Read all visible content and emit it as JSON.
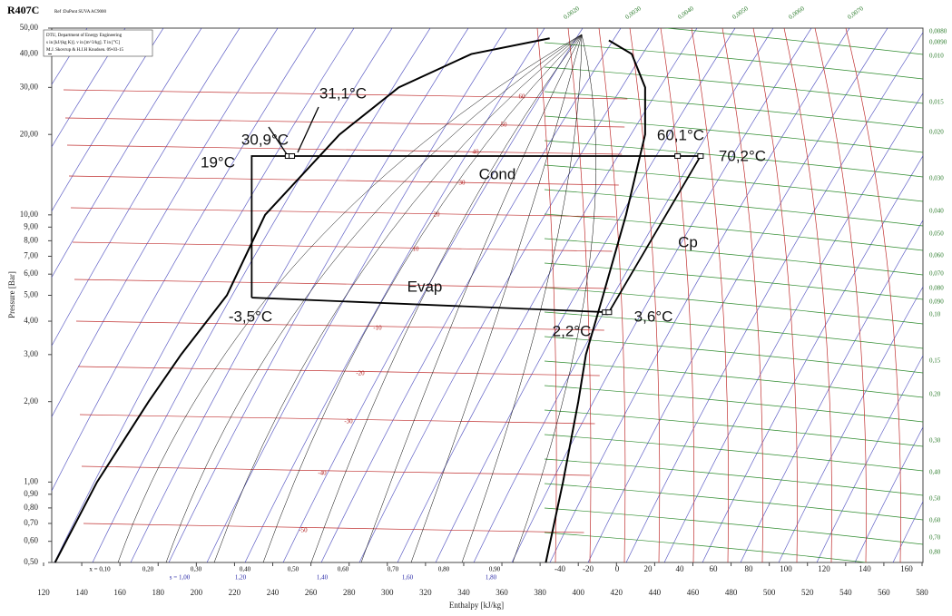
{
  "chart_data": {
    "type": "line",
    "title": "R407C",
    "subtitle": "Ref :DuPont SUVA AC9000",
    "notes": [
      "DTU, Department of Energy Engineering",
      "s in [kJ/(kg K)]. v in [m^3/kg]. T in [°C]",
      "M.J. Skovrup & H.J.H Knudsen. 09-03-15"
    ],
    "xlabel": "Enthalpy [kJ/kg]",
    "ylabel": "Pressure [Bar]",
    "log_y": true,
    "xlim": [
      120,
      580
    ],
    "xticks": [
      120,
      140,
      160,
      180,
      200,
      220,
      240,
      260,
      280,
      300,
      320,
      340,
      360,
      380,
      400,
      420,
      440,
      460,
      480,
      500,
      520,
      540,
      560,
      580
    ],
    "ylim": [
      0.5,
      50
    ],
    "yticks": [
      {
        "value": 0.5,
        "label": "0,50"
      },
      {
        "value": 0.6,
        "label": "0,60"
      },
      {
        "value": 0.7,
        "label": "0,70"
      },
      {
        "value": 0.8,
        "label": "0,80"
      },
      {
        "value": 0.9,
        "label": "0,90"
      },
      {
        "value": 1,
        "label": "1,00"
      },
      {
        "value": 2,
        "label": "2,00"
      },
      {
        "value": 3,
        "label": "3,00"
      },
      {
        "value": 4,
        "label": "4,00"
      },
      {
        "value": 5,
        "label": "5,00"
      },
      {
        "value": 6,
        "label": "6,00"
      },
      {
        "value": 7,
        "label": "7,00"
      },
      {
        "value": 8,
        "label": "8,00"
      },
      {
        "value": 9,
        "label": "9,00"
      },
      {
        "value": 10,
        "label": "10,00"
      },
      {
        "value": 20,
        "label": "20,00"
      },
      {
        "value": 30,
        "label": "30,00"
      },
      {
        "value": 40,
        "label": "40,00"
      },
      {
        "value": 50,
        "label": "50,00"
      }
    ],
    "series": [
      {
        "color": "#000000",
        "x": [
          126,
          148,
          175,
          192,
          216,
          236,
          275,
          306,
          344,
          385
        ],
        "values": [
          0.5,
          1,
          2,
          3,
          5,
          10,
          20,
          30,
          40,
          45.8
        ]
      },
      {
        "color": "#000000",
        "x": [
          383,
          392,
          400,
          404,
          413,
          425,
          435,
          435,
          428,
          416
        ],
        "values": [
          0.5,
          1,
          2,
          3,
          5,
          10,
          20,
          30,
          40,
          45
        ]
      },
      {
        "color": "#000000",
        "x": [
          229,
          416,
          464,
          229,
          229
        ],
        "values": [
          4.9,
          4.32,
          16.6,
          16.6,
          4.9
        ]
      }
    ],
    "markers": {
      "color": "#000000",
      "x": [
        248,
        250,
        452,
        464,
        414,
        416
      ],
      "values": [
        16.6,
        16.6,
        16.6,
        16.6,
        4.32,
        4.32
      ]
    },
    "annotations": [
      "30,9°C",
      "31,1°C",
      "19°C",
      "60,1°C",
      "70,2°C",
      "Cond",
      "Cp",
      "Evap",
      "-3,5°C",
      "2,2°C",
      "3,6°C"
    ],
    "quality_labels": [
      "x = 0,10",
      "0,20",
      "0,30",
      "0,40",
      "0,50",
      "0,60",
      "0,70",
      "0,80",
      "0,90"
    ],
    "entropy_labels": [
      "s = 1,00",
      "1,20",
      "1,40",
      "1,60",
      "1,80"
    ],
    "temperature_labels": [
      "-40",
      "-20",
      "0",
      "20",
      "40",
      "60",
      "80",
      "100",
      "120",
      "140",
      "160"
    ],
    "isotherm_labels": [
      "60",
      "50",
      "40",
      "30",
      "20",
      "10",
      "-10",
      "-20",
      "-30",
      "-40",
      "-50"
    ],
    "volume_labels": [
      "0,0080",
      "0,0090",
      "0,010",
      "0,015",
      "0,020",
      "0,030",
      "0,040",
      "0,050",
      "0,060",
      "0,070",
      "0,080",
      "0,090",
      "0,10",
      "0,15",
      "0,20",
      "0,30",
      "0,40",
      "0,50",
      "0,60",
      "0,70",
      "0,80"
    ],
    "top_volume_labels": [
      "0,0020",
      "0,0030",
      "0,0040",
      "0,0050",
      "0,0060",
      "0,0070"
    ]
  }
}
